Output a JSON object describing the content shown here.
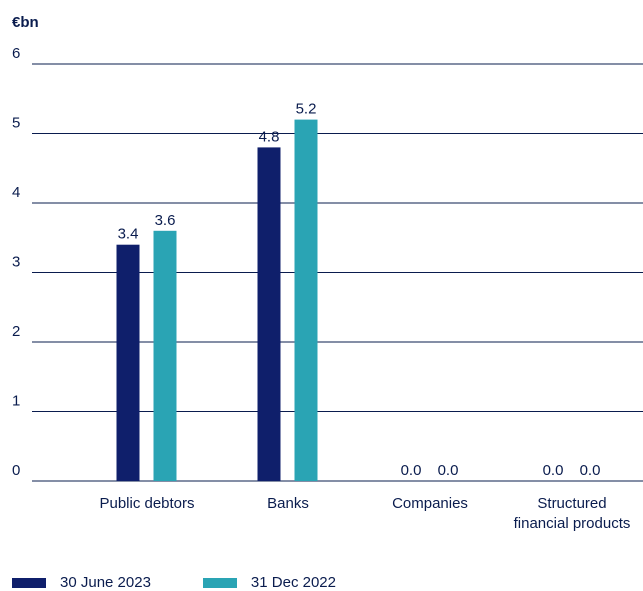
{
  "chart_data": {
    "type": "bar",
    "unit_label": "€bn",
    "categories": [
      [
        "Public debtors"
      ],
      [
        "Banks"
      ],
      [
        "Companies"
      ],
      [
        "Structured",
        "financial products"
      ]
    ],
    "series": [
      {
        "name": "30 June 2023",
        "color": "#0f1f6b",
        "values": [
          3.4,
          4.8,
          0.0,
          0.0
        ],
        "labels": [
          "3.4",
          "4.8",
          "0.0",
          "0.0"
        ]
      },
      {
        "name": "31 Dec 2022",
        "color": "#2aa4b4",
        "values": [
          3.6,
          5.2,
          0.0,
          0.0
        ],
        "labels": [
          "3.6",
          "5.2",
          "0.0",
          "0.0"
        ]
      }
    ],
    "ylim": [
      0,
      6
    ],
    "yticks": [
      "0",
      "1",
      "2",
      "3",
      "4",
      "5",
      "6"
    ],
    "grid": true,
    "legend_position": "bottom-left"
  }
}
